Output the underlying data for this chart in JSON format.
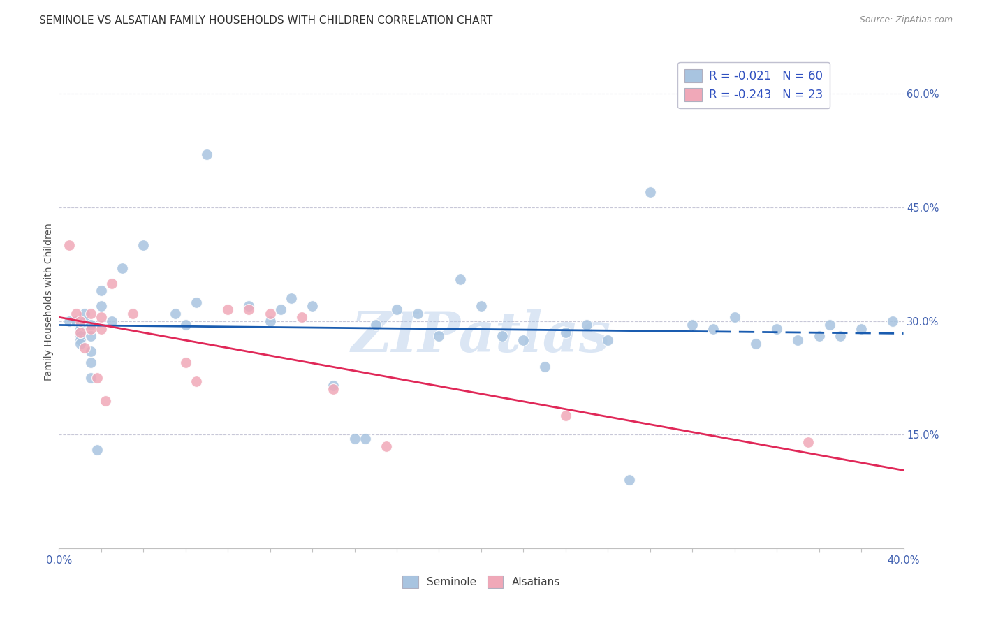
{
  "title": "SEMINOLE VS ALSATIAN FAMILY HOUSEHOLDS WITH CHILDREN CORRELATION CHART",
  "source": "Source: ZipAtlas.com",
  "ylabel": "Family Households with Children",
  "watermark": "ZIPatlas",
  "xlim": [
    0.0,
    0.4
  ],
  "ylim": [
    0.0,
    0.65
  ],
  "ytick_positions": [
    0.15,
    0.3,
    0.45,
    0.6
  ],
  "ytick_labels": [
    "15.0%",
    "30.0%",
    "45.0%",
    "60.0%"
  ],
  "legend_blue_label": "R = -0.021   N = 60",
  "legend_pink_label": "R = -0.243   N = 23",
  "bottom_legend_blue": "Seminole",
  "bottom_legend_pink": "Alsatians",
  "seminole_x": [
    0.005,
    0.008,
    0.01,
    0.01,
    0.01,
    0.01,
    0.01,
    0.01,
    0.01,
    0.012,
    0.012,
    0.012,
    0.015,
    0.015,
    0.015,
    0.015,
    0.015,
    0.018,
    0.02,
    0.02,
    0.025,
    0.03,
    0.04,
    0.055,
    0.06,
    0.065,
    0.07,
    0.09,
    0.1,
    0.105,
    0.11,
    0.12,
    0.13,
    0.14,
    0.145,
    0.15,
    0.16,
    0.17,
    0.18,
    0.19,
    0.2,
    0.21,
    0.22,
    0.23,
    0.24,
    0.25,
    0.26,
    0.27,
    0.28,
    0.3,
    0.31,
    0.32,
    0.33,
    0.34,
    0.35,
    0.36,
    0.365,
    0.37,
    0.38,
    0.395
  ],
  "seminole_y": [
    0.3,
    0.3,
    0.295,
    0.29,
    0.29,
    0.285,
    0.28,
    0.275,
    0.27,
    0.31,
    0.295,
    0.3,
    0.295,
    0.28,
    0.26,
    0.245,
    0.225,
    0.13,
    0.34,
    0.32,
    0.3,
    0.37,
    0.4,
    0.31,
    0.295,
    0.325,
    0.52,
    0.32,
    0.3,
    0.315,
    0.33,
    0.32,
    0.215,
    0.145,
    0.145,
    0.295,
    0.315,
    0.31,
    0.28,
    0.355,
    0.32,
    0.28,
    0.275,
    0.24,
    0.285,
    0.295,
    0.275,
    0.09,
    0.47,
    0.295,
    0.29,
    0.305,
    0.27,
    0.29,
    0.275,
    0.28,
    0.295,
    0.28,
    0.29,
    0.3
  ],
  "alsatian_x": [
    0.005,
    0.008,
    0.01,
    0.01,
    0.012,
    0.015,
    0.015,
    0.018,
    0.02,
    0.02,
    0.022,
    0.025,
    0.035,
    0.06,
    0.065,
    0.08,
    0.09,
    0.1,
    0.115,
    0.13,
    0.155,
    0.24,
    0.355
  ],
  "alsatian_y": [
    0.4,
    0.31,
    0.3,
    0.285,
    0.265,
    0.31,
    0.29,
    0.225,
    0.305,
    0.29,
    0.195,
    0.35,
    0.31,
    0.245,
    0.22,
    0.315,
    0.315,
    0.31,
    0.305,
    0.21,
    0.135,
    0.175,
    0.14
  ],
  "seminole_color": "#a8c4e0",
  "alsatian_color": "#f0a8b8",
  "seminole_line_color": "#1a5cb0",
  "alsatian_line_color": "#e02858",
  "background_color": "#ffffff",
  "grid_color": "#c8c8d8",
  "title_fontsize": 11,
  "axis_label_fontsize": 10,
  "tick_fontsize": 10.5,
  "marker_size": 130,
  "marker_edge_color": "white",
  "marker_edge_width": 0.8
}
